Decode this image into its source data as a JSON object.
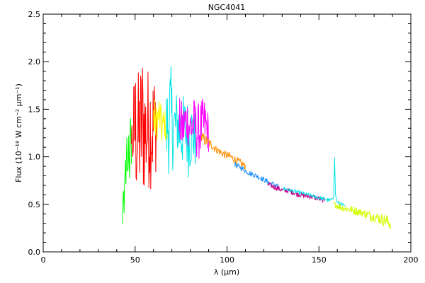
{
  "chart_data": {
    "type": "line",
    "title": "NGC4041",
    "xlabel": "λ (μm)",
    "ylabel": "Flux (10⁻¹⁸ W cm⁻² μm⁻¹)",
    "xlim": [
      0,
      200
    ],
    "ylim": [
      0,
      2.5
    ],
    "x_major_ticks": [
      0,
      50,
      100,
      150,
      200
    ],
    "x_tick_labels": [
      "0",
      "50",
      "100",
      "150",
      "200"
    ],
    "y_major_ticks": [
      0.0,
      0.5,
      1.0,
      1.5,
      2.0,
      2.5
    ],
    "y_tick_labels": [
      "0.0",
      "0.5",
      "1.0",
      "1.5",
      "2.0",
      "2.5"
    ],
    "grid": false,
    "legend": "none",
    "series": [
      {
        "color": "#00ff00",
        "x": [
          43.0,
          43.5,
          44.0,
          44.5,
          45.0,
          45.5,
          46.0,
          46.5,
          47.0,
          47.5,
          48.0
        ],
        "y": [
          0.25,
          0.55,
          0.35,
          0.95,
          0.6,
          1.1,
          0.75,
          1.2,
          0.9,
          1.3,
          1.05
        ],
        "noise": [
          0.1,
          0.15,
          0.12,
          0.15,
          0.2,
          0.15,
          0.12,
          0.1,
          0.15,
          0.1,
          0.12
        ]
      },
      {
        "color": "#ff0000",
        "x": [
          48.0,
          50.0,
          52.0,
          54.0,
          56.0,
          58.0,
          60.0,
          62.0
        ],
        "y": [
          1.15,
          1.3,
          1.2,
          1.35,
          1.25,
          1.35,
          1.3,
          1.4
        ],
        "noise": [
          0.2,
          0.55,
          0.5,
          0.6,
          0.45,
          0.5,
          0.45,
          0.35
        ]
      },
      {
        "color": "#ffff00",
        "x": [
          60.0,
          61.5,
          63.0,
          64.5,
          66.0,
          67.5
        ],
        "y": [
          1.4,
          1.35,
          1.45,
          1.3,
          1.35,
          1.25
        ],
        "noise": [
          0.2,
          0.15,
          0.15,
          0.15,
          0.12,
          0.12
        ]
      },
      {
        "color": "#00e5e5",
        "x": [
          67.0,
          69.0,
          71.0,
          73.0,
          75.0,
          77.0,
          79.0,
          81.0,
          83.0
        ],
        "y": [
          1.3,
          1.4,
          1.3,
          1.35,
          1.25,
          1.3,
          1.2,
          1.25,
          1.15
        ],
        "noise": [
          0.3,
          0.45,
          0.3,
          0.25,
          0.3,
          0.25,
          0.3,
          0.25,
          0.2
        ]
      },
      {
        "color": "#ff00ff",
        "x": [
          74.0,
          76.0,
          78.0,
          80.0,
          82.0,
          84.0,
          86.0,
          88.0,
          90.0
        ],
        "y": [
          1.35,
          1.3,
          1.4,
          1.3,
          1.35,
          1.25,
          1.3,
          1.35,
          1.25
        ],
        "noise": [
          0.2,
          0.2,
          0.18,
          0.2,
          0.2,
          0.22,
          0.22,
          0.2,
          0.15
        ]
      },
      {
        "color": "#ff8c00",
        "x": [
          86.0,
          90.0,
          94.0,
          98.0,
          102.0,
          106.0,
          110.0
        ],
        "y": [
          1.2,
          1.15,
          1.08,
          1.03,
          1.0,
          0.95,
          0.9
        ],
        "noise": [
          0.05,
          0.04,
          0.03,
          0.03,
          0.03,
          0.03,
          0.03
        ]
      },
      {
        "color": "#1e90ff",
        "x": [
          104.0,
          108.0,
          112.0,
          116.0,
          120.0,
          124.0,
          128.0
        ],
        "y": [
          0.92,
          0.88,
          0.83,
          0.8,
          0.76,
          0.72,
          0.69
        ],
        "noise": [
          0.02,
          0.02,
          0.02,
          0.02,
          0.02,
          0.02,
          0.02
        ]
      },
      {
        "color": "#c8008c",
        "x": [
          122.0,
          126.0,
          130.0,
          134.0,
          138.0,
          142.0,
          146.0,
          150.0,
          153.0
        ],
        "y": [
          0.71,
          0.68,
          0.65,
          0.64,
          0.61,
          0.59,
          0.58,
          0.56,
          0.54
        ],
        "noise": [
          0.02,
          0.02,
          0.02,
          0.02,
          0.02,
          0.02,
          0.02,
          0.02,
          0.02
        ]
      },
      {
        "color": "#00e5e5",
        "x": [
          130.0,
          134.0,
          138.0,
          142.0,
          146.0,
          150.0,
          154.0,
          156.0,
          158.0,
          158.5,
          159.0,
          160.0,
          162.0,
          164.0
        ],
        "y": [
          0.67,
          0.65,
          0.63,
          0.61,
          0.59,
          0.57,
          0.55,
          0.54,
          0.57,
          0.99,
          0.6,
          0.52,
          0.5,
          0.48
        ],
        "noise": [
          0.015,
          0.015,
          0.015,
          0.015,
          0.015,
          0.015,
          0.015,
          0.015,
          0.0,
          0.0,
          0.0,
          0.015,
          0.015,
          0.015
        ]
      },
      {
        "color": "#d2ff00",
        "x": [
          158.0,
          162.0,
          166.0,
          170.0,
          174.0,
          178.0,
          182.0,
          186.0,
          189.0
        ],
        "y": [
          0.5,
          0.47,
          0.45,
          0.43,
          0.41,
          0.38,
          0.36,
          0.33,
          0.3
        ],
        "noise": [
          0.02,
          0.03,
          0.03,
          0.03,
          0.03,
          0.04,
          0.04,
          0.05,
          0.05
        ]
      }
    ]
  }
}
